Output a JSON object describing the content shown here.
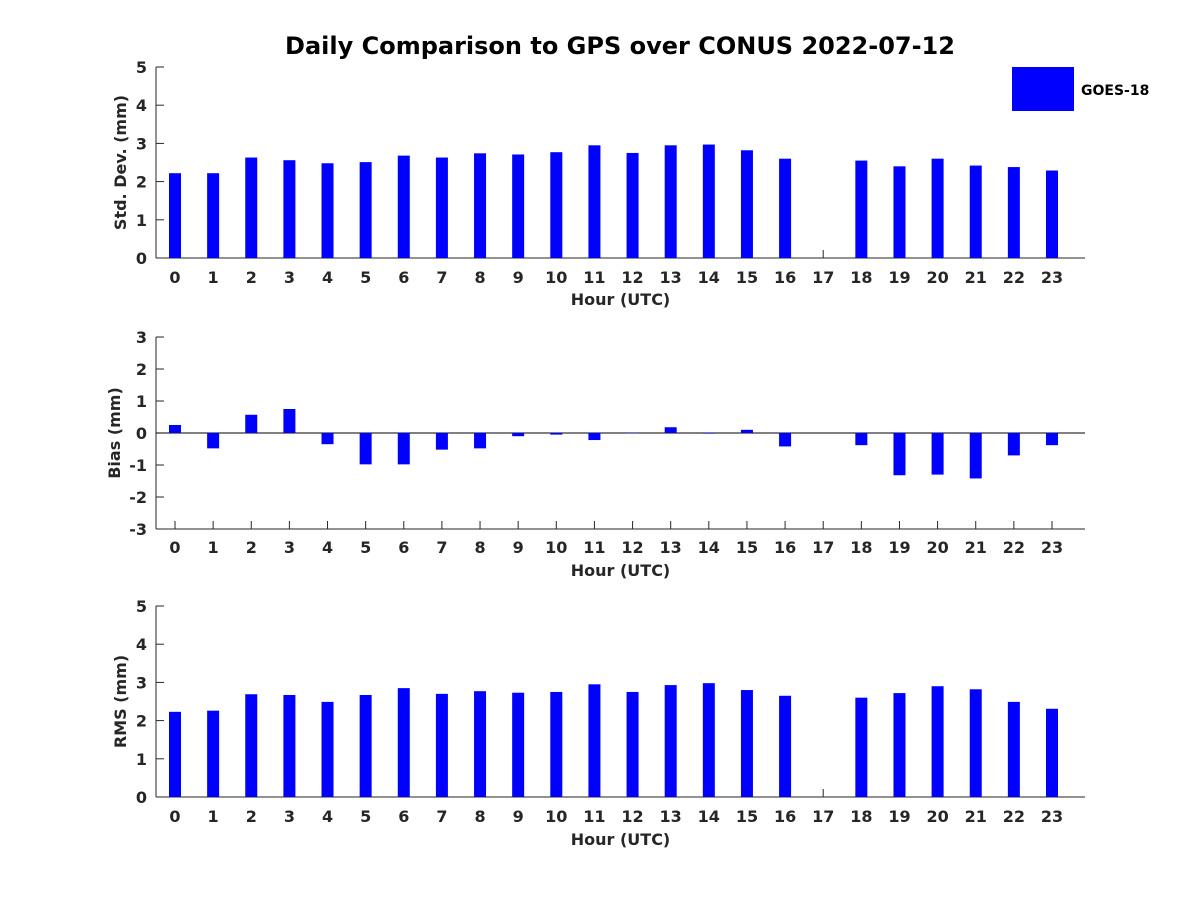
{
  "title": "Daily Comparison to GPS over CONUS 2022-07-12",
  "legend": {
    "label": "GOES-18",
    "color": "#0000ff"
  },
  "bar_color": "#0000ff",
  "chart_data": [
    {
      "type": "bar",
      "title": "Daily Comparison to GPS over CONUS 2022-07-12",
      "xlabel": "Hour (UTC)",
      "ylabel": "Std. Dev. (mm)",
      "ylim": [
        0,
        5
      ],
      "yticks": [
        0,
        1,
        2,
        3,
        4,
        5
      ],
      "categories": [
        "0",
        "1",
        "2",
        "3",
        "4",
        "5",
        "6",
        "7",
        "8",
        "9",
        "10",
        "11",
        "12",
        "13",
        "14",
        "15",
        "16",
        "17",
        "18",
        "19",
        "20",
        "21",
        "22",
        "23"
      ],
      "series": [
        {
          "name": "GOES-18",
          "values": [
            2.22,
            2.22,
            2.63,
            2.56,
            2.48,
            2.51,
            2.68,
            2.63,
            2.74,
            2.71,
            2.77,
            2.95,
            2.75,
            2.95,
            2.97,
            2.82,
            2.6,
            null,
            2.55,
            2.4,
            2.6,
            2.42,
            2.38,
            2.29
          ]
        }
      ],
      "legend": "top-right"
    },
    {
      "type": "bar",
      "xlabel": "Hour (UTC)",
      "ylabel": "Bias (mm)",
      "ylim": [
        -3,
        3
      ],
      "yticks": [
        -3,
        -2,
        -1,
        0,
        1,
        2,
        3
      ],
      "categories": [
        "0",
        "1",
        "2",
        "3",
        "4",
        "5",
        "6",
        "7",
        "8",
        "9",
        "10",
        "11",
        "12",
        "13",
        "14",
        "15",
        "16",
        "17",
        "18",
        "19",
        "20",
        "21",
        "22",
        "23"
      ],
      "series": [
        {
          "name": "GOES-18",
          "values": [
            0.25,
            -0.48,
            0.57,
            0.75,
            -0.35,
            -0.98,
            -0.98,
            -0.52,
            -0.48,
            -0.1,
            -0.05,
            -0.22,
            -0.01,
            0.18,
            -0.02,
            0.1,
            -0.42,
            null,
            -0.38,
            -1.32,
            -1.3,
            -1.42,
            -0.7,
            -0.38
          ]
        }
      ]
    },
    {
      "type": "bar",
      "xlabel": "Hour (UTC)",
      "ylabel": "RMS (mm)",
      "ylim": [
        0,
        5
      ],
      "yticks": [
        0,
        1,
        2,
        3,
        4,
        5
      ],
      "categories": [
        "0",
        "1",
        "2",
        "3",
        "4",
        "5",
        "6",
        "7",
        "8",
        "9",
        "10",
        "11",
        "12",
        "13",
        "14",
        "15",
        "16",
        "17",
        "18",
        "19",
        "20",
        "21",
        "22",
        "23"
      ],
      "series": [
        {
          "name": "GOES-18",
          "values": [
            2.23,
            2.26,
            2.69,
            2.67,
            2.49,
            2.67,
            2.85,
            2.7,
            2.77,
            2.73,
            2.75,
            2.95,
            2.75,
            2.93,
            2.98,
            2.8,
            2.65,
            null,
            2.6,
            2.72,
            2.9,
            2.82,
            2.49,
            2.31
          ]
        }
      ]
    }
  ]
}
